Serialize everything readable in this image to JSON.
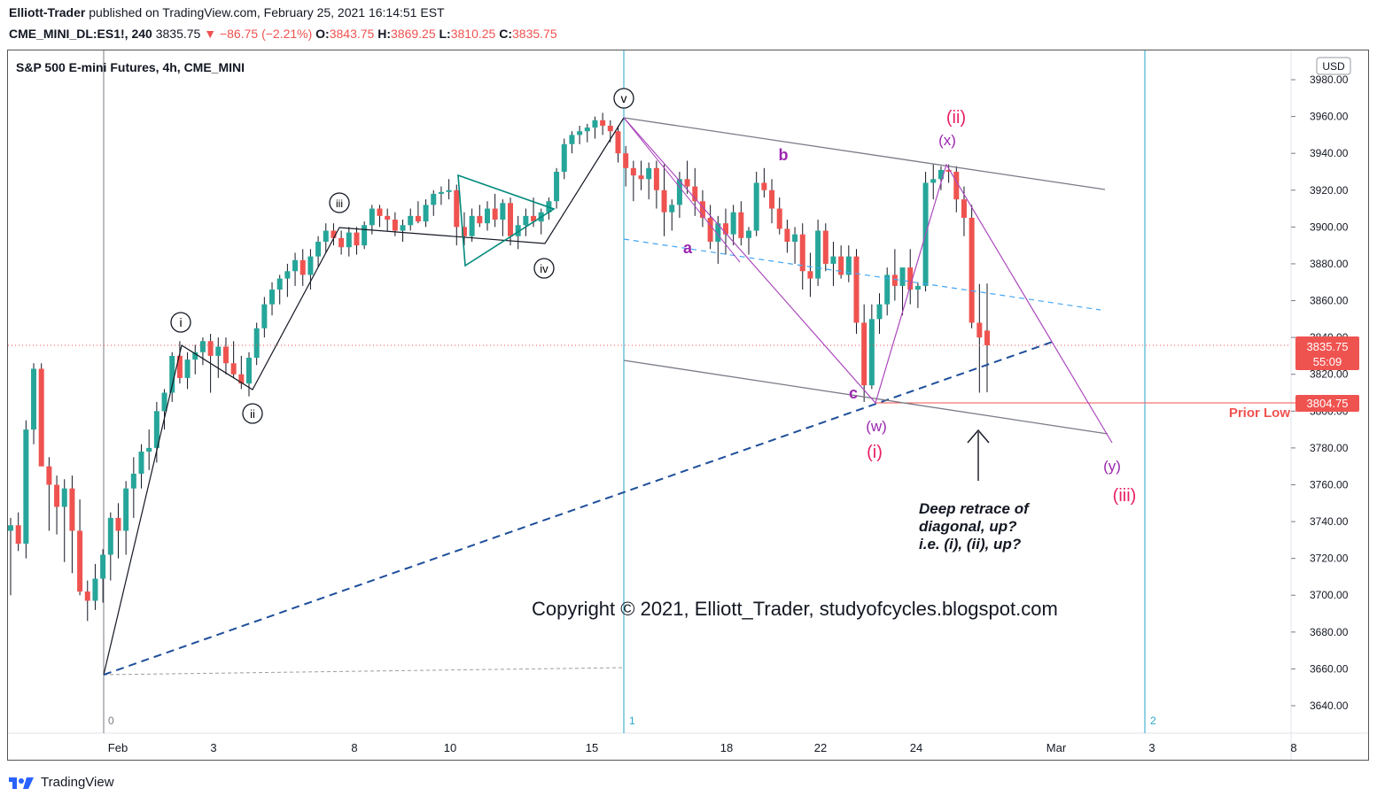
{
  "header": {
    "author": "Elliott-Trader",
    "published": "published on TradingView.com, February 25, 2021 16:14:51 EST",
    "symbol": "CME_MINI_DL:ES1!, 240",
    "last": "3835.75",
    "change": "−86.75 (−2.21%)",
    "o_label": "O:",
    "o": "3843.75",
    "h_label": "H:",
    "h": "3869.25",
    "l_label": "L:",
    "l": "3810.25",
    "c_label": "C:",
    "c": "3835.75"
  },
  "chart_title": "S&P 500 E-mini Futures, 4h, CME_MINI",
  "currency": "USD",
  "price_tag": {
    "price": "3835.75",
    "countdown": "55:09"
  },
  "prior_low": {
    "price": "3804.75",
    "label": "Prior Low"
  },
  "copyright": "Copyright © 2021, Elliott_Trader, studyofcycles.blogspot.com",
  "note_lines": [
    "Deep retrace of",
    "diagonal, up?",
    "i.e. (i), (ii), up?"
  ],
  "cycle_labels": [
    "0",
    "1",
    "2"
  ],
  "footer_brand": "TradingView",
  "colors": {
    "up": "#26a69a",
    "down": "#ef5350",
    "purple": "#9c27b0",
    "magenta": "#e91e63",
    "cycle": "#26a5c9",
    "navy": "#1e4e9a"
  },
  "chart_data": {
    "type": "candlestick",
    "interval": "4h",
    "ylim": [
      3630,
      3990
    ],
    "y_ticks": [
      3640,
      3660,
      3680,
      3700,
      3720,
      3740,
      3760,
      3780,
      3800,
      3820,
      3840,
      3860,
      3880,
      3900,
      3920,
      3940,
      3960,
      3980
    ],
    "x_ticks": [
      "Feb",
      "3",
      "8",
      "10",
      "15",
      "18",
      "22",
      "24",
      "Mar",
      "3",
      "8"
    ],
    "last_close": 3835.75,
    "prior_low": 3804.75,
    "candles": [
      [
        3735,
        3742,
        3700,
        3738
      ],
      [
        3738,
        3745,
        3724,
        3728
      ],
      [
        3728,
        3795,
        3720,
        3790
      ],
      [
        3790,
        3826,
        3782,
        3823
      ],
      [
        3823,
        3826,
        3770,
        3770
      ],
      [
        3770,
        3775,
        3735,
        3760
      ],
      [
        3760,
        3765,
        3733,
        3748
      ],
      [
        3748,
        3763,
        3718,
        3758
      ],
      [
        3758,
        3765,
        3712,
        3735
      ],
      [
        3735,
        3752,
        3700,
        3702
      ],
      [
        3702,
        3708,
        3686,
        3697
      ],
      [
        3697,
        3717,
        3692,
        3709
      ],
      [
        3709,
        3725,
        3696,
        3722
      ],
      [
        3722,
        3745,
        3708,
        3742
      ],
      [
        3742,
        3750,
        3720,
        3735
      ],
      [
        3735,
        3762,
        3722,
        3758
      ],
      [
        3758,
        3775,
        3742,
        3766
      ],
      [
        3766,
        3782,
        3758,
        3778
      ],
      [
        3778,
        3790,
        3768,
        3780
      ],
      [
        3780,
        3805,
        3772,
        3800
      ],
      [
        3800,
        3812,
        3790,
        3810
      ],
      [
        3810,
        3832,
        3805,
        3830
      ],
      [
        3830,
        3838,
        3815,
        3818
      ],
      [
        3818,
        3832,
        3812,
        3828
      ],
      [
        3828,
        3836,
        3820,
        3832
      ],
      [
        3832,
        3840,
        3825,
        3838
      ],
      [
        3838,
        3842,
        3810,
        3830
      ],
      [
        3830,
        3840,
        3818,
        3835
      ],
      [
        3835,
        3840,
        3820,
        3826
      ],
      [
        3826,
        3838,
        3818,
        3820
      ],
      [
        3820,
        3830,
        3812,
        3815
      ],
      [
        3815,
        3832,
        3808,
        3829
      ],
      [
        3829,
        3848,
        3825,
        3845
      ],
      [
        3845,
        3862,
        3840,
        3858
      ],
      [
        3858,
        3870,
        3852,
        3866
      ],
      [
        3866,
        3874,
        3858,
        3872
      ],
      [
        3872,
        3880,
        3862,
        3876
      ],
      [
        3876,
        3886,
        3868,
        3882
      ],
      [
        3882,
        3888,
        3868,
        3874
      ],
      [
        3874,
        3888,
        3866,
        3884
      ],
      [
        3884,
        3895,
        3878,
        3892
      ],
      [
        3892,
        3902,
        3886,
        3898
      ],
      [
        3898,
        3902,
        3890,
        3894
      ],
      [
        3894,
        3898,
        3885,
        3889
      ],
      [
        3889,
        3900,
        3884,
        3897
      ],
      [
        3897,
        3900,
        3885,
        3890
      ],
      [
        3890,
        3903,
        3888,
        3901
      ],
      [
        3901,
        3912,
        3896,
        3910
      ],
      [
        3910,
        3912,
        3900,
        3906
      ],
      [
        3906,
        3910,
        3898,
        3904
      ],
      [
        3904,
        3908,
        3895,
        3898
      ],
      [
        3898,
        3904,
        3892,
        3901
      ],
      [
        3901,
        3910,
        3898,
        3906
      ],
      [
        3906,
        3914,
        3902,
        3903
      ],
      [
        3903,
        3915,
        3900,
        3912
      ],
      [
        3912,
        3920,
        3906,
        3918
      ],
      [
        3918,
        3922,
        3912,
        3919
      ],
      [
        3919,
        3926,
        3915,
        3920
      ],
      [
        3920,
        3923,
        3890,
        3900
      ],
      [
        3900,
        3908,
        3890,
        3895
      ],
      [
        3895,
        3910,
        3892,
        3906
      ],
      [
        3906,
        3912,
        3900,
        3902
      ],
      [
        3902,
        3914,
        3898,
        3910
      ],
      [
        3910,
        3918,
        3900,
        3904
      ],
      [
        3904,
        3915,
        3895,
        3913
      ],
      [
        3913,
        3916,
        3890,
        3895
      ],
      [
        3895,
        3906,
        3888,
        3901
      ],
      [
        3901,
        3910,
        3895,
        3906
      ],
      [
        3906,
        3916,
        3900,
        3903
      ],
      [
        3903,
        3910,
        3896,
        3908
      ],
      [
        3908,
        3916,
        3904,
        3914
      ],
      [
        3914,
        3932,
        3910,
        3930
      ],
      [
        3930,
        3948,
        3926,
        3945
      ],
      [
        3945,
        3952,
        3940,
        3950
      ],
      [
        3950,
        3955,
        3945,
        3952
      ],
      [
        3952,
        3956,
        3946,
        3954
      ],
      [
        3954,
        3960,
        3948,
        3958
      ],
      [
        3958,
        3962,
        3950,
        3955
      ],
      [
        3955,
        3958,
        3946,
        3952
      ],
      [
        3952,
        3955,
        3935,
        3940
      ],
      [
        3940,
        3944,
        3922,
        3932
      ],
      [
        3932,
        3936,
        3914,
        3928
      ],
      [
        3928,
        3936,
        3920,
        3926
      ],
      [
        3926,
        3935,
        3915,
        3932
      ],
      [
        3932,
        3936,
        3910,
        3920
      ],
      [
        3920,
        3934,
        3895,
        3908
      ],
      [
        3908,
        3915,
        3898,
        3912
      ],
      [
        3912,
        3930,
        3905,
        3926
      ],
      [
        3926,
        3936,
        3918,
        3922
      ],
      [
        3922,
        3932,
        3906,
        3914
      ],
      [
        3914,
        3920,
        3900,
        3905
      ],
      [
        3905,
        3912,
        3888,
        3892
      ],
      [
        3892,
        3906,
        3880,
        3902
      ],
      [
        3902,
        3910,
        3885,
        3896
      ],
      [
        3896,
        3912,
        3890,
        3908
      ],
      [
        3908,
        3914,
        3890,
        3894
      ],
      [
        3894,
        3900,
        3885,
        3898
      ],
      [
        3898,
        3930,
        3895,
        3924
      ],
      [
        3924,
        3932,
        3916,
        3920
      ],
      [
        3920,
        3926,
        3902,
        3910
      ],
      [
        3910,
        3916,
        3896,
        3899
      ],
      [
        3899,
        3904,
        3886,
        3892
      ],
      [
        3892,
        3900,
        3880,
        3896
      ],
      [
        3896,
        3902,
        3866,
        3876
      ],
      [
        3876,
        3886,
        3862,
        3872
      ],
      [
        3872,
        3904,
        3868,
        3898
      ],
      [
        3898,
        3902,
        3876,
        3880
      ],
      [
        3880,
        3892,
        3868,
        3884
      ],
      [
        3884,
        3890,
        3872,
        3874
      ],
      [
        3874,
        3890,
        3870,
        3884
      ],
      [
        3884,
        3888,
        3842,
        3848
      ],
      [
        3848,
        3858,
        3805,
        3814
      ],
      [
        3814,
        3858,
        3812,
        3850
      ],
      [
        3850,
        3864,
        3842,
        3858
      ],
      [
        3858,
        3878,
        3852,
        3874
      ],
      [
        3874,
        3888,
        3860,
        3868
      ],
      [
        3868,
        3878,
        3852,
        3878
      ],
      [
        3878,
        3888,
        3858,
        3866
      ],
      [
        3866,
        3870,
        3856,
        3868
      ],
      [
        3868,
        3930,
        3865,
        3924
      ],
      [
        3924,
        3934,
        3915,
        3926
      ],
      [
        3926,
        3933,
        3920,
        3931
      ],
      [
        3931,
        3934,
        3924,
        3930
      ],
      [
        3930,
        3933,
        3908,
        3915
      ],
      [
        3915,
        3922,
        3895,
        3905
      ],
      [
        3905,
        3912,
        3845,
        3848
      ],
      [
        3848,
        3869,
        3810,
        3840
      ],
      [
        3843.75,
        3869.25,
        3810.25,
        3835.75
      ]
    ]
  }
}
